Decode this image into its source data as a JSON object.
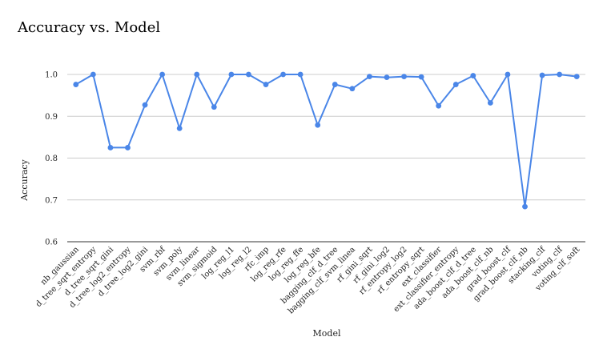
{
  "chart_data": {
    "type": "line",
    "title": "Accuracy vs. Model",
    "xlabel": "Model",
    "ylabel": "Accuracy",
    "ylim": [
      0.6,
      1.0
    ],
    "yticks": [
      "0.6",
      "0.7",
      "0.8",
      "0.9",
      "1.0"
    ],
    "grid": true,
    "legend": "none",
    "color": "#4a86e8",
    "categories": [
      "nb_gaussian",
      "d_tree_sqrt_entropy",
      "d_tree_sqrt_gini",
      "d_tree_log2_entropy",
      "d_tree_log2_gini",
      "svm_rbf",
      "svm_poly",
      "svm_linear",
      "svm_sigmoid",
      "log_reg_l1",
      "log_reg_l2",
      "rfc_imp",
      "log_reg_rfe",
      "log_reg_ffe",
      "log_reg_bfe",
      "bagging_clf_d_tree",
      "bagging_clf_svm_linea",
      "rf_gini_sqrt",
      "rf_gini_log2",
      "rf_entropy_log2",
      "rf_entropy_sqrt",
      "ext_classifier",
      "ext_classifier_entropy",
      "ada_boost_clf_d_tree",
      "ada_boost_clf_nb",
      "grad_boost_clf",
      "grad_boost_clf_nb",
      "stacking_clf",
      "voting_clf",
      "voting_clf_soft"
    ],
    "values": [
      0.976,
      1.0,
      0.825,
      0.825,
      0.927,
      1.0,
      0.871,
      1.0,
      0.922,
      1.0,
      1.0,
      0.976,
      1.0,
      1.0,
      0.879,
      0.976,
      0.966,
      0.995,
      0.993,
      0.995,
      0.994,
      0.925,
      0.976,
      0.997,
      0.932,
      1.0,
      0.684,
      0.998,
      1.0,
      0.995
    ]
  }
}
